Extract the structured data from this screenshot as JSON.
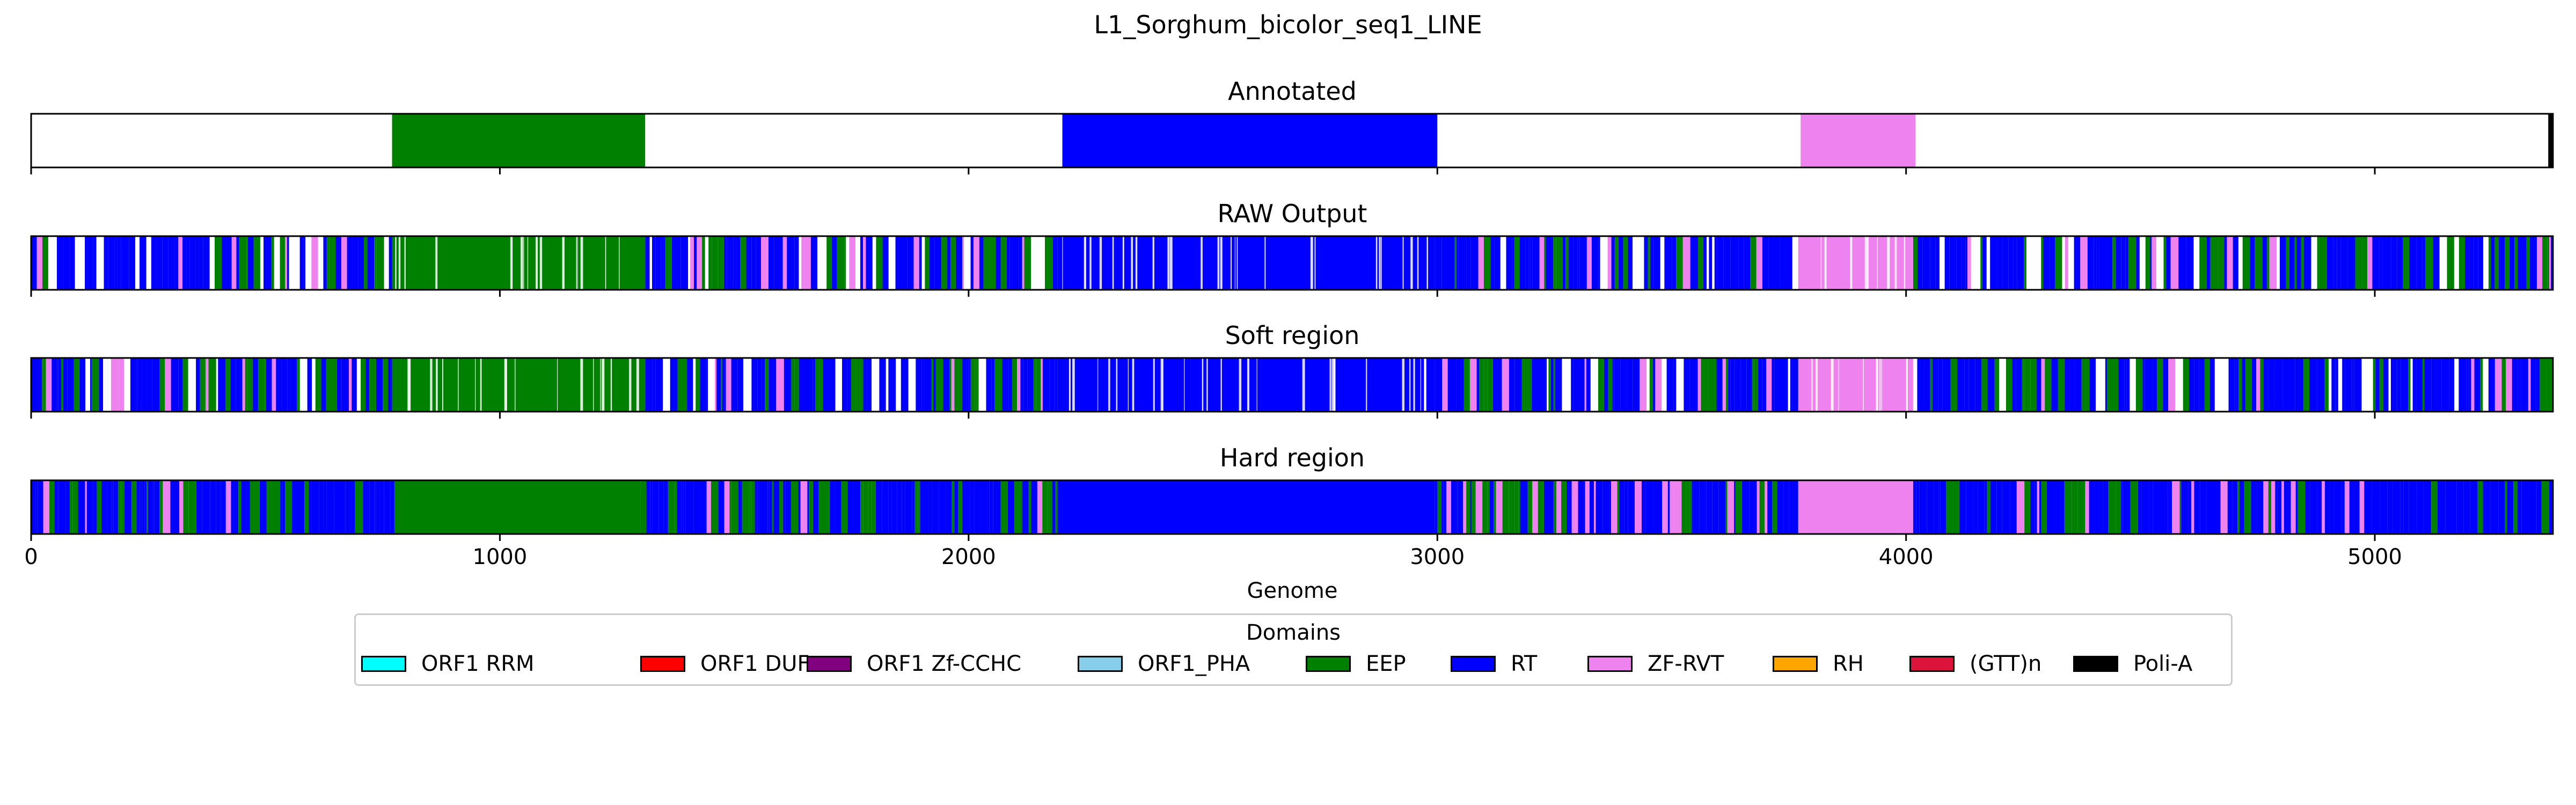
{
  "chart_data": {
    "type": "bar",
    "title": "L1_Sorghum_bicolor_seq1_LINE",
    "xlabel": "Genome",
    "xlim": [
      0,
      5380
    ],
    "xticks": [
      0,
      1000,
      2000,
      3000,
      4000,
      5000
    ],
    "tick_labels": [
      "0",
      "1000",
      "2000",
      "3000",
      "4000",
      "5000"
    ],
    "colors": {
      "EEP": "#008000",
      "RT": "#0000ff",
      "ZF-RVT": "#ee82ee",
      "Poli-A": "#000000",
      "gap": "#ffffff"
    },
    "panels": [
      {
        "name": "Annotated",
        "segments": [
          {
            "domain": "EEP",
            "start": 770,
            "end": 1310
          },
          {
            "domain": "RT",
            "start": 2200,
            "end": 3000
          },
          {
            "domain": "ZF-RVT",
            "start": 3775,
            "end": 4020
          },
          {
            "domain": "Poli-A",
            "start": 5370,
            "end": 5380
          }
        ]
      },
      {
        "name": "RAW Output",
        "background": "RT",
        "segments": [
          {
            "domain": "EEP",
            "start": 770,
            "end": 1310
          },
          {
            "domain": "RT",
            "start": 2190,
            "end": 2995
          },
          {
            "domain": "ZF-RVT",
            "start": 3770,
            "end": 4015
          }
        ],
        "noisy_ranges": [
          [
            0,
            770
          ],
          [
            1310,
            2190
          ],
          [
            2995,
            3770
          ],
          [
            4015,
            5380
          ]
        ],
        "gaps_in_segments": true
      },
      {
        "name": "Soft region",
        "background": "RT",
        "segments": [
          {
            "domain": "EEP",
            "start": 770,
            "end": 1310
          },
          {
            "domain": "RT",
            "start": 2190,
            "end": 2995
          },
          {
            "domain": "ZF-RVT",
            "start": 3770,
            "end": 4015
          }
        ],
        "noisy_ranges": [
          [
            0,
            770
          ],
          [
            1310,
            2190
          ],
          [
            2995,
            3770
          ],
          [
            4015,
            5380
          ]
        ],
        "gaps_in_segments": true
      },
      {
        "name": "Hard region",
        "background": "RT",
        "segments": [
          {
            "domain": "EEP",
            "start": 775,
            "end": 1300
          },
          {
            "domain": "RT",
            "start": 2190,
            "end": 2995
          },
          {
            "domain": "ZF-RVT",
            "start": 3770,
            "end": 4015
          }
        ],
        "noisy_ranges": [
          [
            0,
            775
          ],
          [
            1300,
            2190
          ],
          [
            2995,
            3770
          ],
          [
            4015,
            5380
          ]
        ],
        "gaps_in_segments": false
      }
    ]
  },
  "legend": {
    "title": "Domains",
    "items": [
      {
        "label": "ORF1 RRM",
        "color": "#00ffff"
      },
      {
        "label": "ORF1 DUF",
        "color": "#ff0000"
      },
      {
        "label": "ORF1 Zf-CCHC",
        "color": "#800080"
      },
      {
        "label": "ORF1_PHA",
        "color": "#87ceeb"
      },
      {
        "label": "EEP",
        "color": "#008000"
      },
      {
        "label": "RT",
        "color": "#0000ff"
      },
      {
        "label": "ZF-RVT",
        "color": "#ee82ee"
      },
      {
        "label": "RH",
        "color": "#ffa500"
      },
      {
        "label": "(GTT)n",
        "color": "#dc143c"
      },
      {
        "label": "Poli-A",
        "color": "#000000"
      }
    ]
  }
}
